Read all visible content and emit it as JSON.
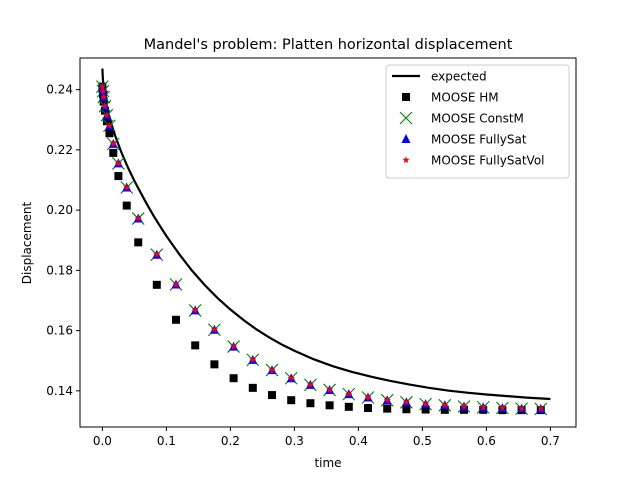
{
  "chart_data": {
    "type": "scatter",
    "title": "Mandel's problem: Platten horizontal displacement",
    "xlabel": "time",
    "ylabel": "Displacement",
    "xlim": [
      -0.035,
      0.74
    ],
    "ylim": [
      0.128,
      0.2505
    ],
    "xticks": [
      0.0,
      0.1,
      0.2,
      0.3,
      0.4,
      0.5,
      0.6,
      0.7
    ],
    "xtick_labels": [
      "0.0",
      "0.1",
      "0.2",
      "0.3",
      "0.4",
      "0.5",
      "0.6",
      "0.7"
    ],
    "yticks": [
      0.14,
      0.16,
      0.18,
      0.2,
      0.22,
      0.24
    ],
    "ytick_labels": [
      "0.14",
      "0.16",
      "0.18",
      "0.20",
      "0.22",
      "0.24"
    ],
    "grid": false,
    "legend_position": "top-right",
    "series": [
      {
        "name": "expected",
        "kind": "line",
        "color": "#000000",
        "x": [
          0.0,
          0.0005,
          0.001,
          0.002,
          0.003,
          0.005,
          0.0075,
          0.01,
          0.015,
          0.02,
          0.025,
          0.03,
          0.04,
          0.05,
          0.06,
          0.07,
          0.08,
          0.09,
          0.1,
          0.12,
          0.14,
          0.16,
          0.18,
          0.2,
          0.22,
          0.24,
          0.26,
          0.28,
          0.3,
          0.33,
          0.36,
          0.39,
          0.42,
          0.45,
          0.48,
          0.51,
          0.54,
          0.57,
          0.6,
          0.63,
          0.66,
          0.7
        ],
        "y": [
          0.247,
          0.2445,
          0.2428,
          0.2406,
          0.239,
          0.2364,
          0.2339,
          0.2316,
          0.228,
          0.2247,
          0.2218,
          0.219,
          0.2141,
          0.2097,
          0.2057,
          0.2018,
          0.1981,
          0.1947,
          0.1914,
          0.1854,
          0.1799,
          0.1751,
          0.1708,
          0.167,
          0.1636,
          0.1605,
          0.1578,
          0.1554,
          0.1533,
          0.1505,
          0.1482,
          0.1463,
          0.1447,
          0.1433,
          0.1421,
          0.141,
          0.1401,
          0.1394,
          0.1388,
          0.1383,
          0.1378,
          0.1373
        ]
      },
      {
        "name": "MOOSE HM",
        "kind": "marker",
        "marker": "square",
        "color": "#000000",
        "x": [
          0.0,
          0.001,
          0.002,
          0.004,
          0.007,
          0.011,
          0.017,
          0.025,
          0.038,
          0.056,
          0.085,
          0.115,
          0.145,
          0.175,
          0.205,
          0.235,
          0.265,
          0.295,
          0.325,
          0.355,
          0.385,
          0.415,
          0.445,
          0.475,
          0.505,
          0.535,
          0.565,
          0.595,
          0.625,
          0.655,
          0.685
        ],
        "y": [
          0.241,
          0.2385,
          0.236,
          0.233,
          0.2295,
          0.2255,
          0.219,
          0.2113,
          0.2015,
          0.1893,
          0.1752,
          0.1636,
          0.1551,
          0.1488,
          0.1442,
          0.141,
          0.1386,
          0.1369,
          0.1359,
          0.1352,
          0.1347,
          0.1343,
          0.1341,
          0.1339,
          0.1338,
          0.1337,
          0.1337,
          0.1337,
          0.1336,
          0.1336,
          0.1336
        ]
      },
      {
        "name": "MOOSE ConstM",
        "kind": "marker",
        "marker": "x",
        "color": "#008000",
        "x": [
          0.0,
          0.001,
          0.002,
          0.004,
          0.007,
          0.011,
          0.017,
          0.025,
          0.038,
          0.056,
          0.085,
          0.115,
          0.145,
          0.175,
          0.205,
          0.235,
          0.265,
          0.295,
          0.325,
          0.355,
          0.385,
          0.415,
          0.445,
          0.475,
          0.505,
          0.535,
          0.565,
          0.595,
          0.625,
          0.655,
          0.685
        ],
        "y": [
          0.241,
          0.2395,
          0.2375,
          0.2345,
          0.2315,
          0.228,
          0.222,
          0.2155,
          0.2075,
          0.1972,
          0.1852,
          0.1753,
          0.1667,
          0.1603,
          0.1547,
          0.1503,
          0.1469,
          0.1442,
          0.142,
          0.1403,
          0.1389,
          0.1378,
          0.1369,
          0.1362,
          0.1356,
          0.1352,
          0.1348,
          0.1345,
          0.1343,
          0.1341,
          0.134
        ]
      },
      {
        "name": "MOOSE FullySat",
        "kind": "marker",
        "marker": "triangle",
        "color": "#0000ff",
        "x": [
          0.0,
          0.001,
          0.002,
          0.004,
          0.007,
          0.011,
          0.017,
          0.025,
          0.038,
          0.056,
          0.085,
          0.115,
          0.145,
          0.175,
          0.205,
          0.235,
          0.265,
          0.295,
          0.325,
          0.355,
          0.385,
          0.415,
          0.445,
          0.475,
          0.505,
          0.535,
          0.565,
          0.595,
          0.625,
          0.655,
          0.685
        ],
        "y": [
          0.241,
          0.2395,
          0.2375,
          0.2345,
          0.2315,
          0.228,
          0.222,
          0.2155,
          0.2075,
          0.1972,
          0.1852,
          0.1753,
          0.1667,
          0.1603,
          0.1547,
          0.1503,
          0.1469,
          0.1442,
          0.142,
          0.1403,
          0.1389,
          0.1378,
          0.1369,
          0.1362,
          0.1356,
          0.1352,
          0.1348,
          0.1345,
          0.1343,
          0.1341,
          0.134
        ]
      },
      {
        "name": "MOOSE FullySatVol",
        "kind": "marker",
        "marker": "star",
        "color": "#ff0000",
        "x": [
          0.0,
          0.001,
          0.002,
          0.004,
          0.007,
          0.011,
          0.017,
          0.025,
          0.038,
          0.056,
          0.085,
          0.115,
          0.145,
          0.175,
          0.205,
          0.235,
          0.265,
          0.295,
          0.325,
          0.355,
          0.385,
          0.415,
          0.445,
          0.475,
          0.505,
          0.535,
          0.565,
          0.595,
          0.625,
          0.655,
          0.685
        ],
        "y": [
          0.241,
          0.2395,
          0.2375,
          0.2345,
          0.2315,
          0.228,
          0.222,
          0.2155,
          0.2075,
          0.1972,
          0.1852,
          0.1753,
          0.1667,
          0.1603,
          0.1547,
          0.1503,
          0.1469,
          0.1442,
          0.142,
          0.1403,
          0.1389,
          0.1378,
          0.1369,
          0.1362,
          0.1356,
          0.1352,
          0.1348,
          0.1345,
          0.1343,
          0.1341,
          0.134
        ]
      }
    ]
  }
}
